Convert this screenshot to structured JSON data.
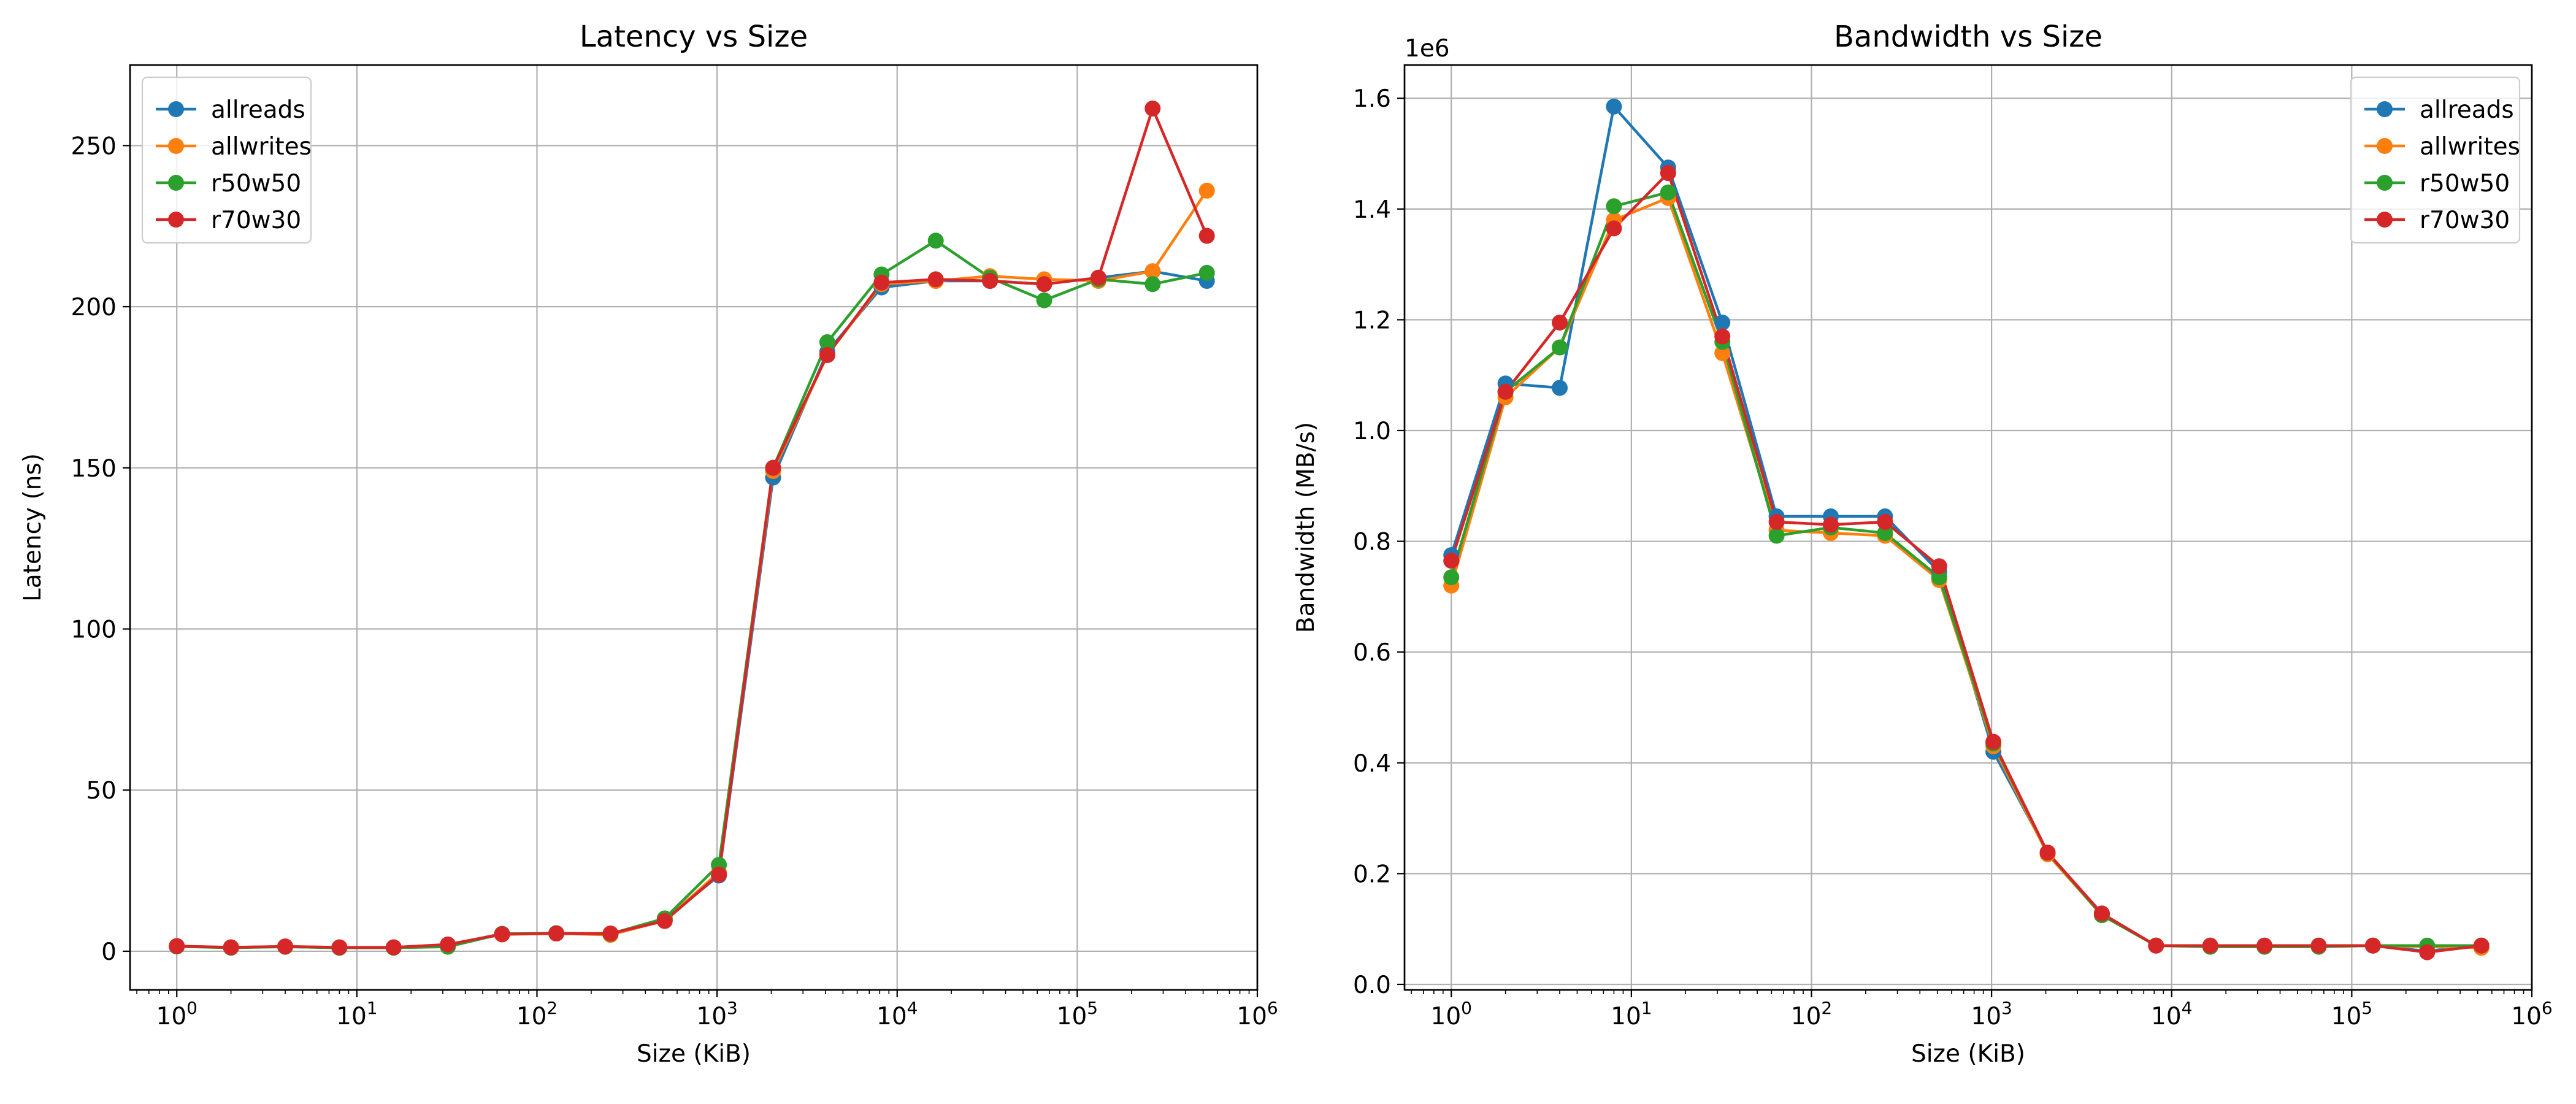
{
  "chart_data": [
    {
      "type": "line",
      "title": "Latency vs Size",
      "xlabel": "Size (KiB)",
      "ylabel": "Latency (ns)",
      "xscale": "log",
      "xlim": [
        0.55,
        1000000
      ],
      "ylim": [
        -12,
        275
      ],
      "x_ticks": [
        1,
        10,
        100,
        1000,
        10000,
        100000,
        1000000
      ],
      "y_ticks": [
        0,
        50,
        100,
        150,
        200,
        250
      ],
      "y_tick_labels": [
        "0",
        "50",
        "100",
        "150",
        "200",
        "250"
      ],
      "grid": true,
      "legend_position": "top-left",
      "x": [
        1,
        2,
        4,
        8,
        16,
        32,
        64,
        128,
        256,
        512,
        1024,
        2048,
        4096,
        8192,
        16384,
        32768,
        65536,
        131072,
        262144,
        524288
      ],
      "series": [
        {
          "name": "allreads",
          "color": "#1f77b4",
          "values": [
            1.5,
            1.2,
            1.4,
            1.1,
            1.2,
            2.0,
            5.4,
            5.6,
            5.3,
            9.8,
            23.5,
            147,
            186,
            206,
            208,
            208,
            207,
            209,
            211,
            208
          ]
        },
        {
          "name": "allwrites",
          "color": "#ff7f0e",
          "values": [
            1.6,
            1.2,
            1.5,
            1.2,
            1.2,
            1.9,
            5.2,
            5.5,
            5.1,
            9.5,
            24.5,
            149,
            185,
            207,
            208,
            209.5,
            208.5,
            208,
            211,
            236
          ]
        },
        {
          "name": "r50w50",
          "color": "#2ca02c",
          "values": [
            1.5,
            1.1,
            1.4,
            1.1,
            1.1,
            1.4,
            5.4,
            5.6,
            5.4,
            10.2,
            26.8,
            150,
            189,
            210,
            220.5,
            209,
            202,
            208.5,
            207,
            210.5
          ]
        },
        {
          "name": "r70w30",
          "color": "#d62728",
          "values": [
            1.6,
            1.2,
            1.5,
            1.2,
            1.2,
            2.1,
            5.3,
            5.5,
            5.5,
            9.4,
            23.8,
            150,
            185,
            207.5,
            208.5,
            208,
            207,
            209,
            261.5,
            222
          ]
        }
      ]
    },
    {
      "type": "line",
      "title": "Bandwidth vs Size",
      "xlabel": "Size (KiB)",
      "ylabel": "Bandwidth (MB/s)",
      "y_offset_label": "1e6",
      "xscale": "log",
      "xlim": [
        0.55,
        1000000
      ],
      "ylim": [
        -0.01,
        1.66
      ],
      "x_ticks": [
        1,
        10,
        100,
        1000,
        10000,
        100000,
        1000000
      ],
      "y_ticks": [
        0,
        0.2,
        0.4,
        0.6,
        0.8,
        1.0,
        1.2,
        1.4,
        1.6
      ],
      "y_tick_labels": [
        "0.0",
        "0.2",
        "0.4",
        "0.6",
        "0.8",
        "1.0",
        "1.2",
        "1.4",
        "1.6"
      ],
      "grid": true,
      "legend_position": "top-right",
      "x": [
        1,
        2,
        4,
        8,
        16,
        32,
        64,
        128,
        256,
        512,
        1024,
        2048,
        4096,
        8192,
        16384,
        32768,
        65536,
        131072,
        262144,
        524288
      ],
      "series": [
        {
          "name": "allreads",
          "color": "#1f77b4",
          "values": [
            0.775,
            1.085,
            1.077,
            1.585,
            1.475,
            1.195,
            0.845,
            0.845,
            0.845,
            0.745,
            0.42,
            0.238,
            0.128,
            0.07,
            0.07,
            0.07,
            0.07,
            0.07,
            0.06,
            0.07
          ]
        },
        {
          "name": "allwrites",
          "color": "#ff7f0e",
          "values": [
            0.72,
            1.06,
            1.15,
            1.38,
            1.42,
            1.14,
            0.82,
            0.815,
            0.81,
            0.73,
            0.43,
            0.235,
            0.125,
            0.07,
            0.068,
            0.068,
            0.068,
            0.07,
            0.068,
            0.066
          ]
        },
        {
          "name": "r50w50",
          "color": "#2ca02c",
          "values": [
            0.735,
            1.07,
            1.15,
            1.405,
            1.43,
            1.16,
            0.81,
            0.825,
            0.815,
            0.735,
            0.435,
            0.238,
            0.125,
            0.07,
            0.068,
            0.068,
            0.068,
            0.07,
            0.07,
            0.07
          ]
        },
        {
          "name": "r70w30",
          "color": "#d62728",
          "values": [
            0.765,
            1.07,
            1.195,
            1.365,
            1.465,
            1.17,
            0.835,
            0.83,
            0.835,
            0.755,
            0.438,
            0.238,
            0.128,
            0.07,
            0.07,
            0.07,
            0.07,
            0.07,
            0.058,
            0.07
          ]
        }
      ]
    }
  ]
}
